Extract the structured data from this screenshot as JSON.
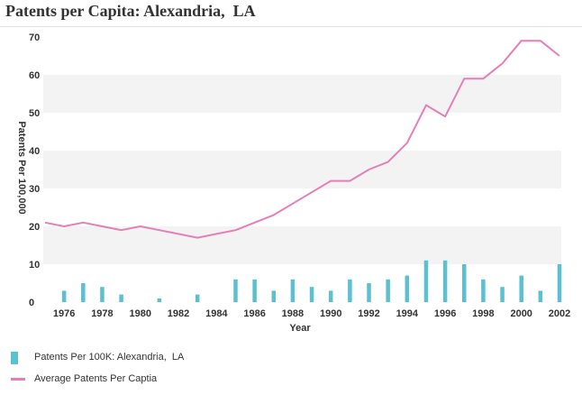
{
  "chart_data": {
    "type": "bar+line",
    "title": "Patents per Capita: Alexandria,  LA",
    "xlabel": "Year",
    "ylabel": "Patents Per 100,000",
    "ylim": [
      0,
      70
    ],
    "yticks": [
      0,
      10,
      20,
      30,
      40,
      50,
      60,
      70
    ],
    "xticks": [
      1976,
      1978,
      1980,
      1982,
      1984,
      1986,
      1988,
      1990,
      1992,
      1994,
      1996,
      1998,
      2000,
      2002
    ],
    "x": [
      1975,
      1976,
      1977,
      1978,
      1979,
      1980,
      1981,
      1982,
      1983,
      1984,
      1985,
      1986,
      1987,
      1988,
      1989,
      1990,
      1991,
      1992,
      1993,
      1994,
      1995,
      1996,
      1997,
      1998,
      1999,
      2000,
      2001,
      2002
    ],
    "series": [
      {
        "name": "Patents Per 100K: Alexandria,  LA",
        "type": "bar",
        "color": "#5bc0d0",
        "values": [
          0,
          3,
          5,
          4,
          2,
          0,
          1,
          0,
          2,
          0,
          6,
          6,
          3,
          6,
          4,
          3,
          6,
          5,
          6,
          7,
          11,
          11,
          10,
          6,
          4,
          7,
          3,
          10
        ]
      },
      {
        "name": "Average Patents Per Captia",
        "type": "line",
        "color": "#e57fb8",
        "values": [
          21,
          20,
          21,
          20,
          19,
          20,
          19,
          18,
          17,
          18,
          19,
          21,
          23,
          26,
          29,
          32,
          32,
          35,
          37,
          42,
          52,
          49,
          59,
          59,
          63,
          69,
          69,
          65
        ]
      }
    ],
    "legend_position": "bottom-left",
    "grid": "alternating horizontal bands"
  }
}
